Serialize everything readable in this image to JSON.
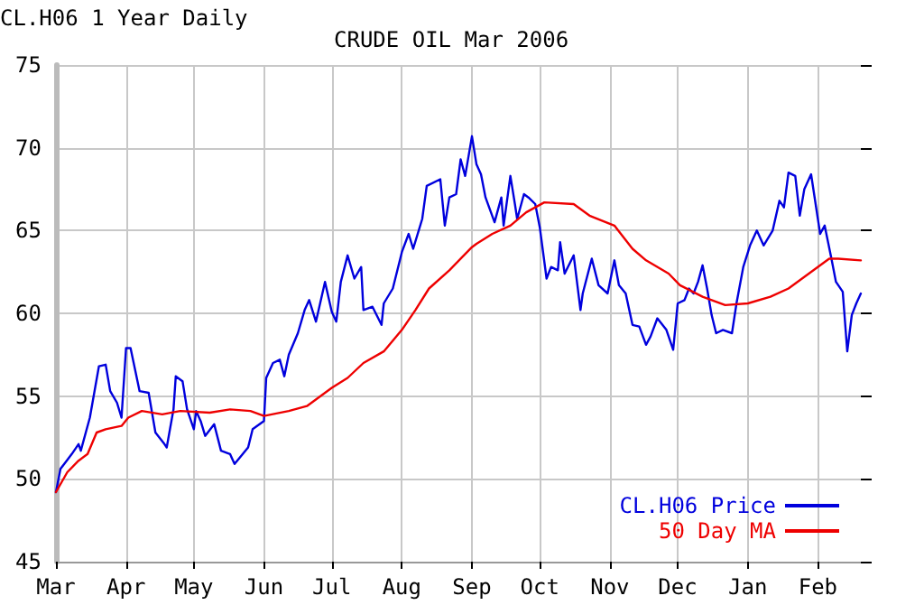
{
  "chart_data": {
    "type": "line",
    "title": "CRUDE OIL Mar 2006",
    "annotations": [
      "CL.H06 1 Year Daily"
    ],
    "xlim": [
      "2005-03-01",
      "2006-02-20"
    ],
    "xticks": [
      {
        "value": "2005-03-01",
        "label": "Mar"
      },
      {
        "value": "2005-04-01",
        "label": "Apr"
      },
      {
        "value": "2005-05-01",
        "label": "May"
      },
      {
        "value": "2005-06-01",
        "label": "Jun"
      },
      {
        "value": "2005-07-01",
        "label": "Jul"
      },
      {
        "value": "2005-08-01",
        "label": "Aug"
      },
      {
        "value": "2005-09-01",
        "label": "Sep"
      },
      {
        "value": "2005-10-01",
        "label": "Oct"
      },
      {
        "value": "2005-11-01",
        "label": "Nov"
      },
      {
        "value": "2005-12-01",
        "label": "Dec"
      },
      {
        "value": "2006-01-01",
        "label": "Jan"
      },
      {
        "value": "2006-02-01",
        "label": "Feb"
      }
    ],
    "ylim": [
      45,
      75
    ],
    "yticks": [
      45,
      50,
      55,
      60,
      65,
      70,
      75
    ],
    "grid": true,
    "legend": "bottom right",
    "marker": "none",
    "line_style": "solid",
    "series": [
      {
        "name": "CL.H06 Price",
        "color": "#0000dd",
        "x": [
          "2005-03-01",
          "2005-03-03",
          "2005-03-08",
          "2005-03-11",
          "2005-03-12",
          "2005-03-16",
          "2005-03-20",
          "2005-03-23",
          "2005-03-25",
          "2005-03-28",
          "2005-03-30",
          "2005-04-01",
          "2005-04-03",
          "2005-04-07",
          "2005-04-11",
          "2005-04-14",
          "2005-04-18",
          "2005-04-19",
          "2005-04-22",
          "2005-04-23",
          "2005-04-26",
          "2005-04-28",
          "2005-05-01",
          "2005-05-02",
          "2005-05-04",
          "2005-05-06",
          "2005-05-10",
          "2005-05-13",
          "2005-05-17",
          "2005-05-19",
          "2005-05-25",
          "2005-05-27",
          "2005-06-01",
          "2005-06-02",
          "2005-06-05",
          "2005-06-08",
          "2005-06-10",
          "2005-06-12",
          "2005-06-16",
          "2005-06-19",
          "2005-06-21",
          "2005-06-24",
          "2005-06-28",
          "2005-07-01",
          "2005-07-03",
          "2005-07-05",
          "2005-07-08",
          "2005-07-11",
          "2005-07-14",
          "2005-07-15",
          "2005-07-19",
          "2005-07-23",
          "2005-07-24",
          "2005-07-28",
          "2005-08-01",
          "2005-08-04",
          "2005-08-06",
          "2005-08-10",
          "2005-08-12",
          "2005-08-18",
          "2005-08-20",
          "2005-08-22",
          "2005-08-25",
          "2005-08-27",
          "2005-08-29",
          "2005-09-01",
          "2005-09-03",
          "2005-09-05",
          "2005-09-07",
          "2005-09-11",
          "2005-09-14",
          "2005-09-15",
          "2005-09-18",
          "2005-09-20",
          "2005-09-21",
          "2005-09-24",
          "2005-09-26",
          "2005-09-29",
          "2005-10-01",
          "2005-10-04",
          "2005-10-06",
          "2005-10-09",
          "2005-10-10",
          "2005-10-12",
          "2005-10-16",
          "2005-10-19",
          "2005-10-20",
          "2005-10-24",
          "2005-10-27",
          "2005-10-31",
          "2005-11-03",
          "2005-11-05",
          "2005-11-08",
          "2005-11-11",
          "2005-11-14",
          "2005-11-17",
          "2005-11-19",
          "2005-11-22",
          "2005-11-26",
          "2005-11-29",
          "2005-12-01",
          "2005-12-04",
          "2005-12-06",
          "2005-12-08",
          "2005-12-10",
          "2005-12-12",
          "2005-12-14",
          "2005-12-16",
          "2005-12-18",
          "2005-12-21",
          "2005-12-25",
          "2005-12-27",
          "2005-12-30",
          "2006-01-02",
          "2006-01-05",
          "2006-01-08",
          "2006-01-12",
          "2006-01-15",
          "2006-01-17",
          "2006-01-19",
          "2006-01-22",
          "2006-01-24",
          "2006-01-26",
          "2006-01-29",
          "2006-02-01",
          "2006-02-02",
          "2006-02-04",
          "2006-02-07",
          "2006-02-09",
          "2006-02-12",
          "2006-02-14",
          "2006-02-16",
          "2006-02-18",
          "2006-02-20"
        ],
        "values": [
          49.2,
          50.6,
          51.5,
          52.1,
          51.7,
          53.7,
          56.8,
          56.9,
          55.3,
          54.6,
          53.7,
          57.9,
          57.9,
          55.3,
          55.2,
          52.8,
          52.1,
          51.9,
          54.2,
          56.2,
          55.9,
          54.2,
          53.0,
          54.1,
          53.5,
          52.6,
          53.3,
          51.7,
          51.5,
          50.9,
          51.9,
          53.0,
          53.5,
          56.1,
          57.0,
          57.2,
          56.2,
          57.5,
          58.8,
          60.2,
          60.8,
          59.5,
          61.9,
          60.1,
          59.5,
          61.9,
          63.5,
          62.1,
          62.8,
          60.2,
          60.4,
          59.3,
          60.6,
          61.5,
          63.7,
          64.8,
          63.9,
          65.7,
          67.7,
          68.1,
          65.3,
          67.0,
          67.2,
          69.3,
          68.3,
          70.7,
          69.0,
          68.4,
          67.0,
          65.5,
          67.0,
          65.3,
          68.3,
          66.6,
          65.7,
          67.2,
          67.0,
          66.6,
          65.2,
          62.1,
          62.8,
          62.6,
          64.3,
          62.4,
          63.5,
          60.2,
          61.2,
          63.3,
          61.7,
          61.2,
          63.2,
          61.7,
          61.2,
          59.3,
          59.2,
          58.1,
          58.6,
          59.7,
          59.0,
          57.8,
          60.6,
          60.8,
          61.5,
          61.2,
          61.9,
          62.9,
          61.5,
          59.9,
          58.8,
          59.0,
          58.8,
          60.6,
          62.8,
          64.1,
          65.0,
          64.1,
          65.0,
          66.8,
          66.4,
          68.5,
          68.3,
          65.9,
          67.5,
          68.4,
          65.7,
          64.8,
          65.3,
          63.3,
          61.9,
          61.3,
          57.7,
          59.9,
          60.6,
          61.2
        ]
      },
      {
        "name": "50 Day MA",
        "color": "#ee0000",
        "x": [
          "2005-03-01",
          "2005-03-06",
          "2005-03-11",
          "2005-03-15",
          "2005-03-19",
          "2005-03-23",
          "2005-03-30",
          "2005-04-02",
          "2005-04-08",
          "2005-04-17",
          "2005-04-25",
          "2005-05-08",
          "2005-05-17",
          "2005-05-26",
          "2005-06-01",
          "2005-06-12",
          "2005-06-20",
          "2005-07-01",
          "2005-07-08",
          "2005-07-15",
          "2005-07-24",
          "2005-08-01",
          "2005-08-07",
          "2005-08-13",
          "2005-08-22",
          "2005-09-01",
          "2005-09-03",
          "2005-09-10",
          "2005-09-18",
          "2005-09-25",
          "2005-10-03",
          "2005-10-16",
          "2005-10-23",
          "2005-11-03",
          "2005-11-11",
          "2005-11-17",
          "2005-11-27",
          "2005-12-02",
          "2005-12-12",
          "2005-12-22",
          "2006-01-01",
          "2006-01-11",
          "2006-01-19",
          "2006-01-28",
          "2006-02-06",
          "2006-02-10",
          "2006-02-20"
        ],
        "values": [
          49.2,
          50.4,
          51.1,
          51.5,
          52.8,
          53.0,
          53.2,
          53.7,
          54.1,
          53.9,
          54.1,
          54.0,
          54.2,
          54.1,
          53.8,
          54.1,
          54.4,
          55.5,
          56.1,
          57.0,
          57.7,
          59.0,
          60.2,
          61.5,
          62.6,
          64.0,
          64.2,
          64.8,
          65.3,
          66.1,
          66.7,
          66.6,
          65.9,
          65.3,
          63.9,
          63.2,
          62.4,
          61.7,
          61.0,
          60.5,
          60.6,
          61.0,
          61.5,
          62.4,
          63.3,
          63.3,
          63.2
        ]
      }
    ]
  }
}
